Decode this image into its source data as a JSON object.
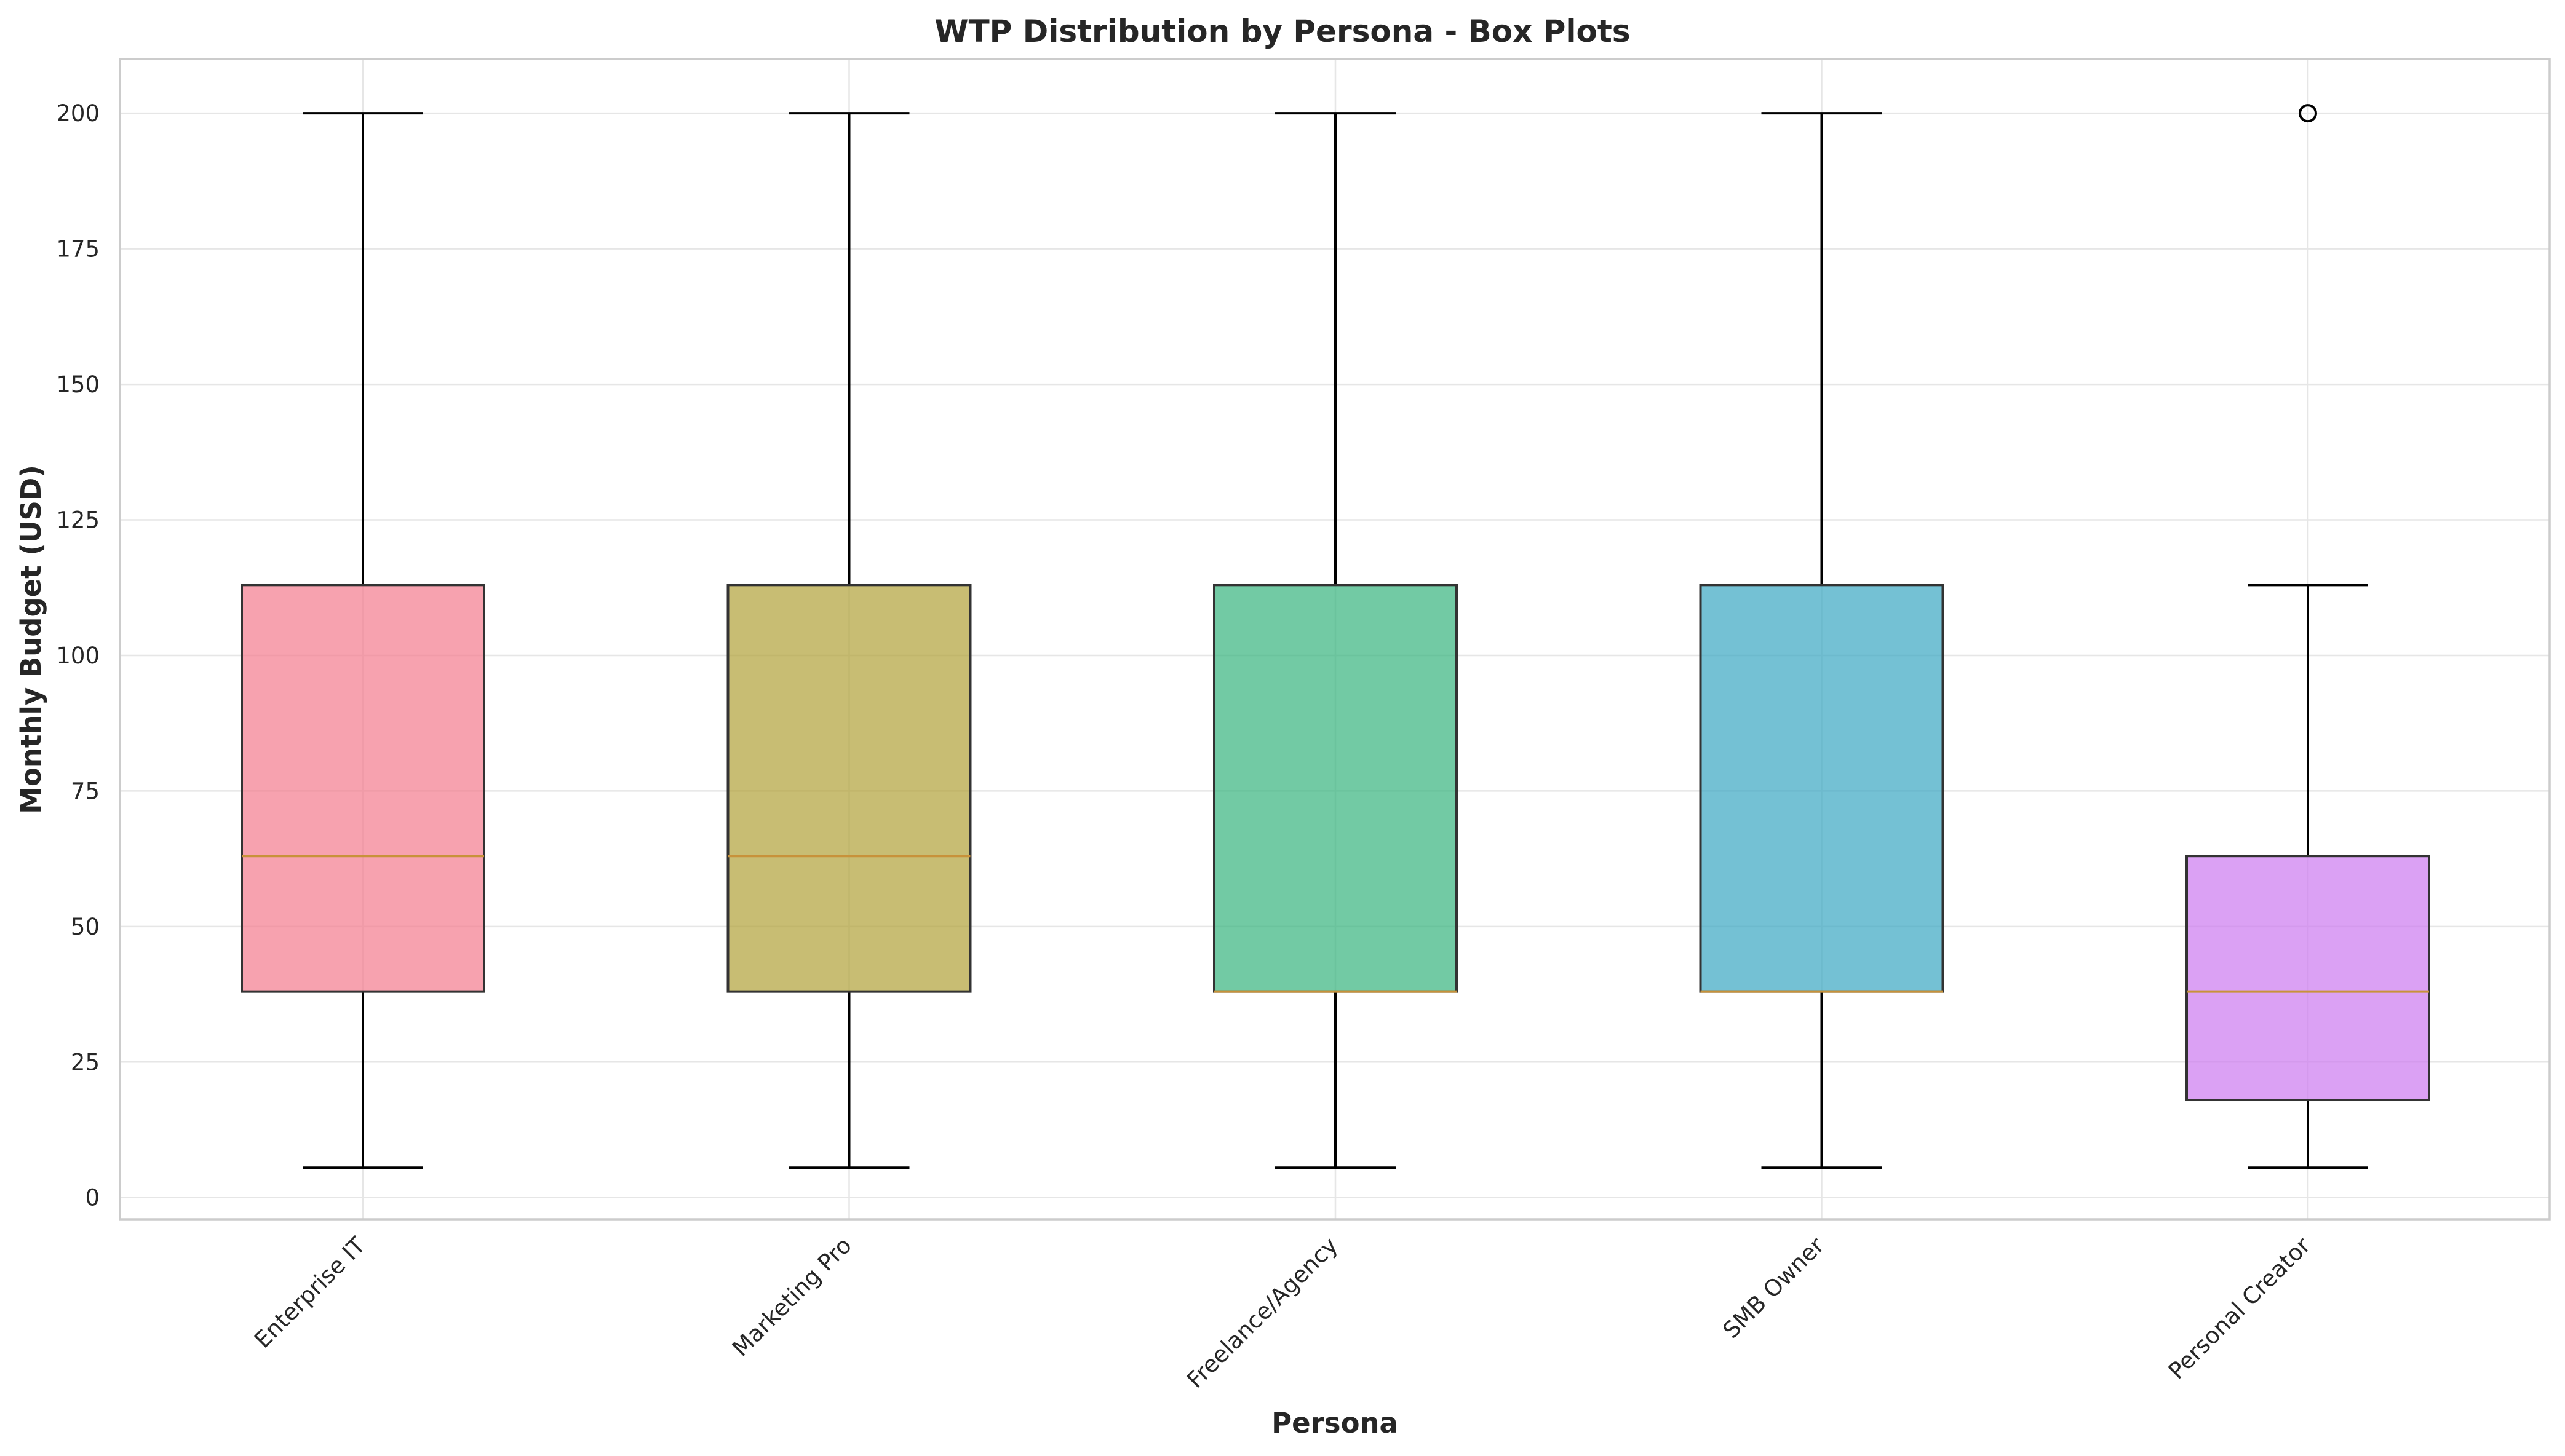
{
  "chart_data": {
    "type": "box",
    "title": "WTP Distribution by Persona - Box Plots",
    "xlabel": "Persona",
    "ylabel": "Monthly Budget (USD)",
    "ylim": [
      -4,
      210
    ],
    "yticks": [
      0,
      25,
      50,
      75,
      100,
      125,
      150,
      175,
      200
    ],
    "grid": true,
    "categories": [
      "Enterprise IT",
      "Marketing Pro",
      "Freelance/Agency",
      "SMB Owner",
      "Personal Creator"
    ],
    "boxes": [
      {
        "name": "Enterprise IT",
        "whisker_low": 5.5,
        "q1": 38,
        "median": 63,
        "q3": 113,
        "whisker_high": 200,
        "fliers": [],
        "color": "#f37b8d"
      },
      {
        "name": "Marketing Pro",
        "whisker_low": 5.5,
        "q1": 38,
        "median": 63,
        "q3": 113,
        "whisker_high": 200,
        "fliers": [],
        "color": "#b0a137"
      },
      {
        "name": "Freelance/Agency",
        "whisker_low": 5.5,
        "q1": 38,
        "median": 38,
        "q3": 113,
        "whisker_high": 200,
        "fliers": [],
        "color": "#36b37e"
      },
      {
        "name": "SMB Owner",
        "whisker_low": 5.5,
        "q1": 38,
        "median": 38,
        "q3": 113,
        "whisker_high": 200,
        "fliers": [],
        "color": "#39a7c2"
      },
      {
        "name": "Personal Creator",
        "whisker_low": 5.5,
        "q1": 18,
        "median": 38,
        "q3": 63,
        "whisker_high": 113,
        "fliers": [
          200
        ],
        "color": "#cc79ef"
      }
    ]
  }
}
